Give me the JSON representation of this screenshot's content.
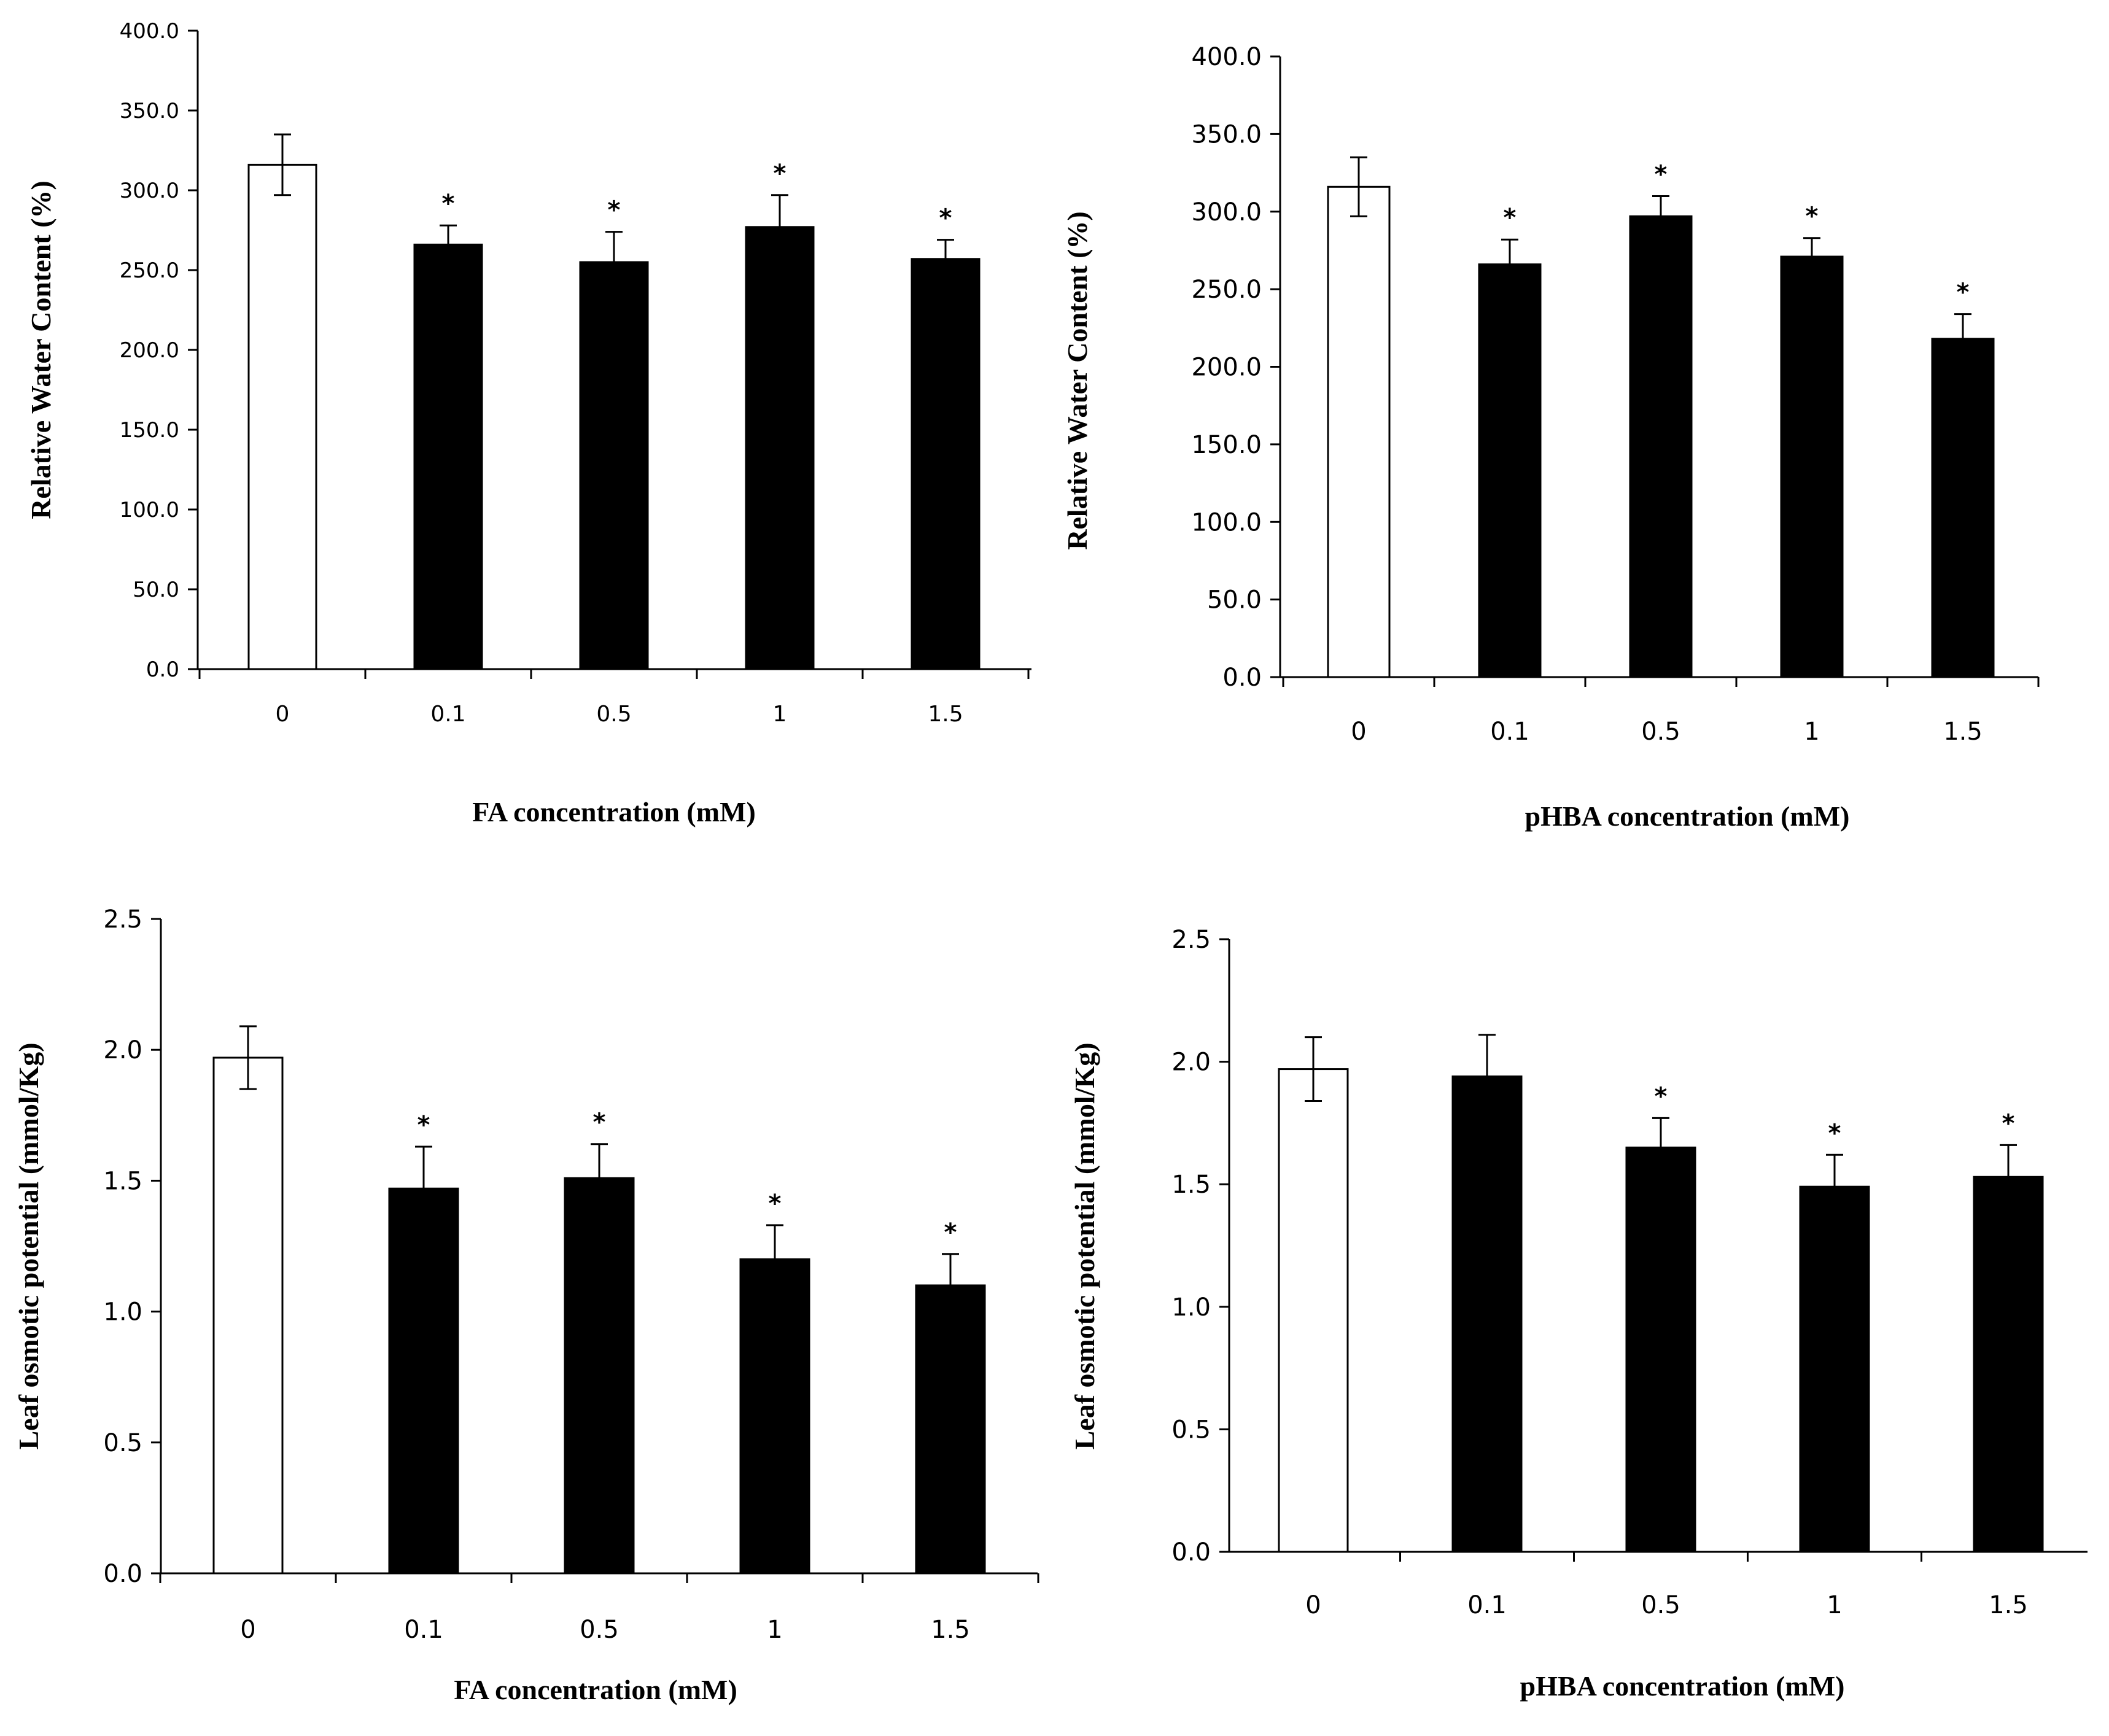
{
  "chart_data": [
    {
      "type": "bar",
      "title": "",
      "categories": [
        "0",
        "0.1",
        "0.5",
        "1",
        "1.5"
      ],
      "values": [
        316,
        266,
        255,
        277,
        257
      ],
      "errors": [
        19,
        12,
        19,
        20,
        12
      ],
      "significant": [
        false,
        true,
        true,
        true,
        true
      ],
      "fills": [
        "#ffffff",
        "#000000",
        "#000000",
        "#000000",
        "#000000"
      ],
      "significance_marker": "*",
      "xlabel": "FA concentration (mM)",
      "ylabel": "Relative Water Content (%)",
      "ylim": [
        0,
        400
      ],
      "yticks": [
        "0.0",
        "50.0",
        "100.0",
        "150.0",
        "200.0",
        "250.0",
        "300.0",
        "350.0",
        "400.0"
      ],
      "grid": false,
      "legend": "none"
    },
    {
      "type": "bar",
      "title": "",
      "categories": [
        "0",
        "0.1",
        "0.5",
        "1",
        "1.5"
      ],
      "values": [
        316,
        266,
        297,
        271,
        218
      ],
      "errors": [
        19,
        16,
        13,
        12,
        16
      ],
      "significant": [
        false,
        true,
        true,
        true,
        true
      ],
      "fills": [
        "#ffffff",
        "#000000",
        "#000000",
        "#000000",
        "#000000"
      ],
      "significance_marker": "*",
      "xlabel": "pHBA concentration (mM)",
      "ylabel": "Relative Water Content (%)",
      "ylim": [
        0,
        400
      ],
      "yticks": [
        "0.0",
        "50.0",
        "100.0",
        "150.0",
        "200.0",
        "250.0",
        "300.0",
        "350.0",
        "400.0"
      ],
      "grid": false,
      "legend": "none"
    },
    {
      "type": "bar",
      "title": "",
      "categories": [
        "0",
        "0.1",
        "0.5",
        "1",
        "1.5"
      ],
      "values": [
        1.97,
        1.47,
        1.51,
        1.2,
        1.1
      ],
      "errors": [
        0.12,
        0.16,
        0.13,
        0.13,
        0.12
      ],
      "significant": [
        false,
        true,
        true,
        true,
        true
      ],
      "fills": [
        "#ffffff",
        "#000000",
        "#000000",
        "#000000",
        "#000000"
      ],
      "significance_marker": "*",
      "xlabel": "FA concentration (mM)",
      "ylabel": "Leaf osmotic potential (mmol/Kg)",
      "ylim": [
        0,
        2.5
      ],
      "yticks": [
        "0.0",
        "0.5",
        "1.0",
        "1.5",
        "2.0",
        "2.5"
      ],
      "grid": false,
      "legend": "none"
    },
    {
      "type": "bar",
      "title": "",
      "categories": [
        "0",
        "0.1",
        "0.5",
        "1",
        "1.5"
      ],
      "values": [
        1.97,
        1.94,
        1.65,
        1.49,
        1.53
      ],
      "errors": [
        0.13,
        0.17,
        0.12,
        0.13,
        0.13
      ],
      "significant": [
        false,
        false,
        true,
        true,
        true
      ],
      "fills": [
        "#ffffff",
        "#000000",
        "#000000",
        "#000000",
        "#000000"
      ],
      "significance_marker": "*",
      "xlabel": "pHBA concentration (mM)",
      "ylabel": "Leaf osmotic potential (mmol/Kg)",
      "ylim": [
        0,
        2.5
      ],
      "yticks": [
        "0.0",
        "0.5",
        "1.0",
        "1.5",
        "2.0",
        "2.5"
      ],
      "grid": false,
      "legend": "none"
    }
  ]
}
